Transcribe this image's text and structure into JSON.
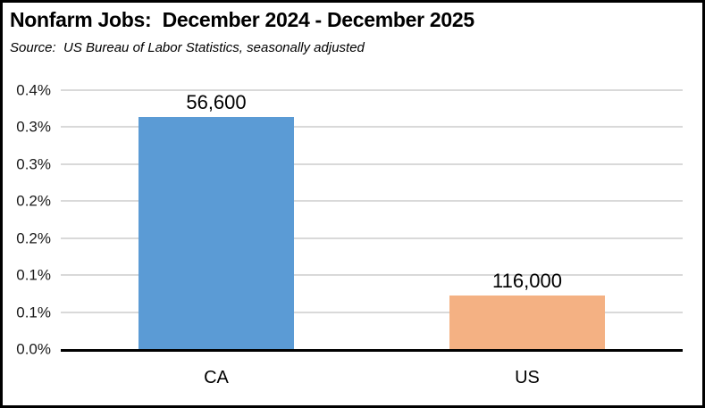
{
  "header": {
    "title": "Nonfarm Jobs:  December 2024 - December 2025",
    "source": "Source:  US Bureau of Labor Statistics, seasonally adjusted"
  },
  "chart_data": {
    "type": "bar",
    "title": "Nonfarm Jobs:  December 2024 - December 2025",
    "subtitle": "Source:  US Bureau of Labor Statistics, seasonally adjusted",
    "categories": [
      "CA",
      "US"
    ],
    "values": [
      0.314,
      0.073
    ],
    "value_unit": "percent job growth",
    "value_labels": [
      "56,600",
      "116,000"
    ],
    "bar_colors": [
      "#5B9BD5",
      "#F4B183"
    ],
    "xlabel": "",
    "ylabel": "",
    "ylim": [
      0,
      0.35
    ],
    "y_tick_step": 0.05,
    "y_tick_labels_bottom_to_top": [
      "0.0%",
      "0.1%",
      "0.1%",
      "0.2%",
      "0.2%",
      "0.3%",
      "0.3%",
      "0.4%"
    ],
    "grid": true,
    "legend": false,
    "colors": {
      "gridline": "#D9D9D9",
      "axis_line": "#000000",
      "text": "#000000",
      "tick_text": "#1a1a1a"
    }
  }
}
